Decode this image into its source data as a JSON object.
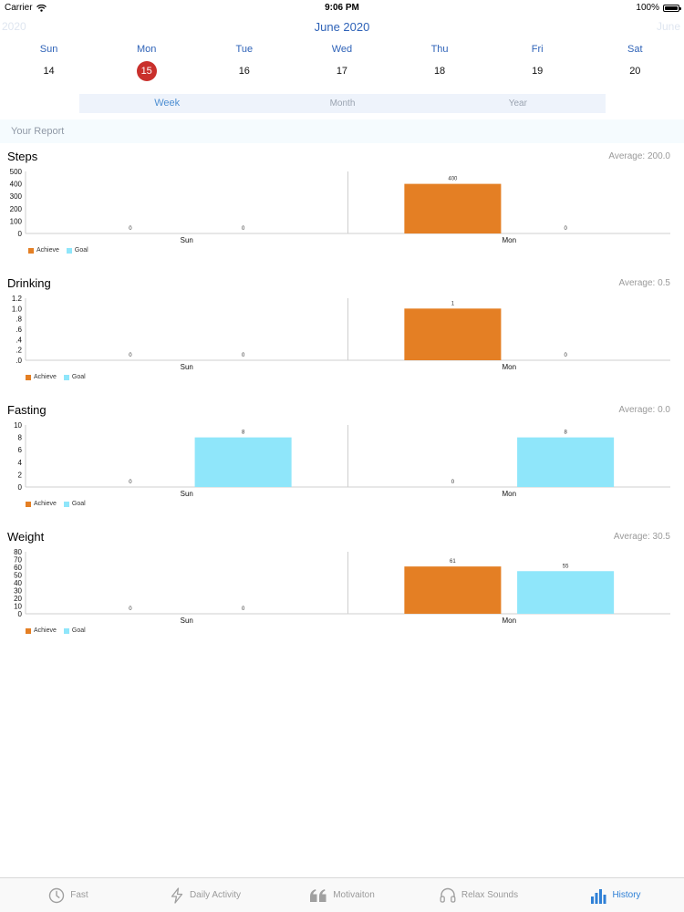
{
  "status_bar": {
    "carrier": "Carrier",
    "time": "9:06 PM",
    "battery": "100%",
    "battery_level": 1.0
  },
  "calendar": {
    "prev_label": "2020",
    "current_month": "June 2020",
    "next_label": "June",
    "days": [
      {
        "name": "Sun",
        "num": "14",
        "selected": false
      },
      {
        "name": "Mon",
        "num": "15",
        "selected": true
      },
      {
        "name": "Tue",
        "num": "16",
        "selected": false
      },
      {
        "name": "Wed",
        "num": "17",
        "selected": false
      },
      {
        "name": "Thu",
        "num": "18",
        "selected": false
      },
      {
        "name": "Fri",
        "num": "19",
        "selected": false
      },
      {
        "name": "Sat",
        "num": "20",
        "selected": false
      }
    ]
  },
  "segments": [
    "Week",
    "Month",
    "Year"
  ],
  "active_segment": "Week",
  "report_title": "Your Report",
  "colors": {
    "achieve": "#e47f24",
    "goal": "#8fe6fa",
    "accent": "#2f63b8",
    "selected_day": "#c9302c"
  },
  "legend": {
    "achieve": "Achieve",
    "goal": "Goal"
  },
  "chart_data": [
    {
      "type": "bar",
      "title": "Steps",
      "average_label": "Average: 200.0",
      "categories": [
        "Sun",
        "Mon"
      ],
      "series": [
        {
          "name": "Achieve",
          "values": [
            0,
            400
          ]
        },
        {
          "name": "Goal",
          "values": [
            0,
            0
          ]
        }
      ],
      "data_labels": [
        [
          "0",
          "400"
        ],
        [
          "0",
          "0"
        ]
      ],
      "yticks": [
        "0",
        "100",
        "200",
        "300",
        "400",
        "500"
      ],
      "ylim": [
        0,
        500
      ],
      "legend_position": "bottom-left"
    },
    {
      "type": "bar",
      "title": "Drinking",
      "average_label": "Average: 0.5",
      "categories": [
        "Sun",
        "Mon"
      ],
      "series": [
        {
          "name": "Achieve",
          "values": [
            0,
            1
          ]
        },
        {
          "name": "Goal",
          "values": [
            0,
            0
          ]
        }
      ],
      "data_labels": [
        [
          "0",
          "1"
        ],
        [
          "0",
          "0"
        ]
      ],
      "yticks": [
        ".0",
        ".2",
        ".4",
        ".6",
        ".8",
        "1.0",
        "1.2"
      ],
      "ylim": [
        0,
        1.2
      ],
      "legend_position": "bottom-left"
    },
    {
      "type": "bar",
      "title": "Fasting",
      "average_label": "Average: 0.0",
      "categories": [
        "Sun",
        "Mon"
      ],
      "series": [
        {
          "name": "Achieve",
          "values": [
            0,
            0
          ]
        },
        {
          "name": "Goal",
          "values": [
            8,
            8
          ]
        }
      ],
      "data_labels": [
        [
          "0",
          "0"
        ],
        [
          "8",
          "8"
        ]
      ],
      "yticks": [
        "0",
        "2",
        "4",
        "6",
        "8",
        "10"
      ],
      "ylim": [
        0,
        10
      ],
      "legend_position": "bottom-left"
    },
    {
      "type": "bar",
      "title": "Weight",
      "average_label": "Average: 30.5",
      "categories": [
        "Sun",
        "Mon"
      ],
      "series": [
        {
          "name": "Achieve",
          "values": [
            0,
            61
          ]
        },
        {
          "name": "Goal",
          "values": [
            0,
            55
          ]
        }
      ],
      "data_labels": [
        [
          "0",
          "61"
        ],
        [
          "0",
          "55"
        ]
      ],
      "yticks": [
        "0",
        "10",
        "20",
        "30",
        "40",
        "50",
        "60",
        "70",
        "80"
      ],
      "ylim": [
        0,
        80
      ],
      "legend_position": "bottom-left"
    }
  ],
  "tabs": [
    {
      "label": "Fast",
      "icon": "clock-icon",
      "active": false
    },
    {
      "label": "Daily Activity",
      "icon": "lightning-icon",
      "active": false
    },
    {
      "label": "Motivaiton",
      "icon": "quote-icon",
      "active": false
    },
    {
      "label": "Relax Sounds",
      "icon": "headphones-icon",
      "active": false
    },
    {
      "label": "History",
      "icon": "bar-chart-icon",
      "active": true
    }
  ]
}
